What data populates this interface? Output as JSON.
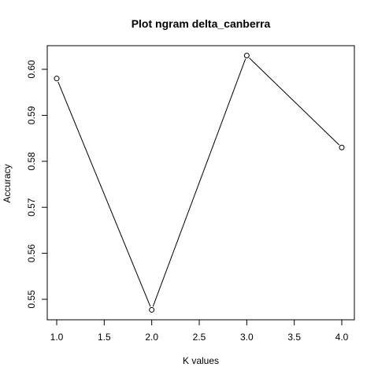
{
  "chart_data": {
    "type": "line",
    "title": "Plot ngram delta_canberra",
    "xlabel": "K values",
    "ylabel": "Accuracy",
    "x": [
      1,
      2,
      3,
      4
    ],
    "y": [
      0.598,
      0.5477,
      0.603,
      0.583
    ],
    "xlim": [
      1,
      4
    ],
    "ylim": [
      0.545,
      0.605
    ],
    "xticks": [
      1.0,
      1.5,
      2.0,
      2.5,
      3.0,
      3.5,
      4.0
    ],
    "xtick_labels": [
      "1.0",
      "1.5",
      "2.0",
      "2.5",
      "3.0",
      "3.5",
      "4.0"
    ],
    "yticks": [
      0.55,
      0.56,
      0.57,
      0.58,
      0.59,
      0.6
    ],
    "ytick_labels": [
      "0.55",
      "0.56",
      "0.57",
      "0.58",
      "0.59",
      "0.60"
    ],
    "grid": false,
    "marker": "open-circle",
    "line_color": "#000000"
  }
}
